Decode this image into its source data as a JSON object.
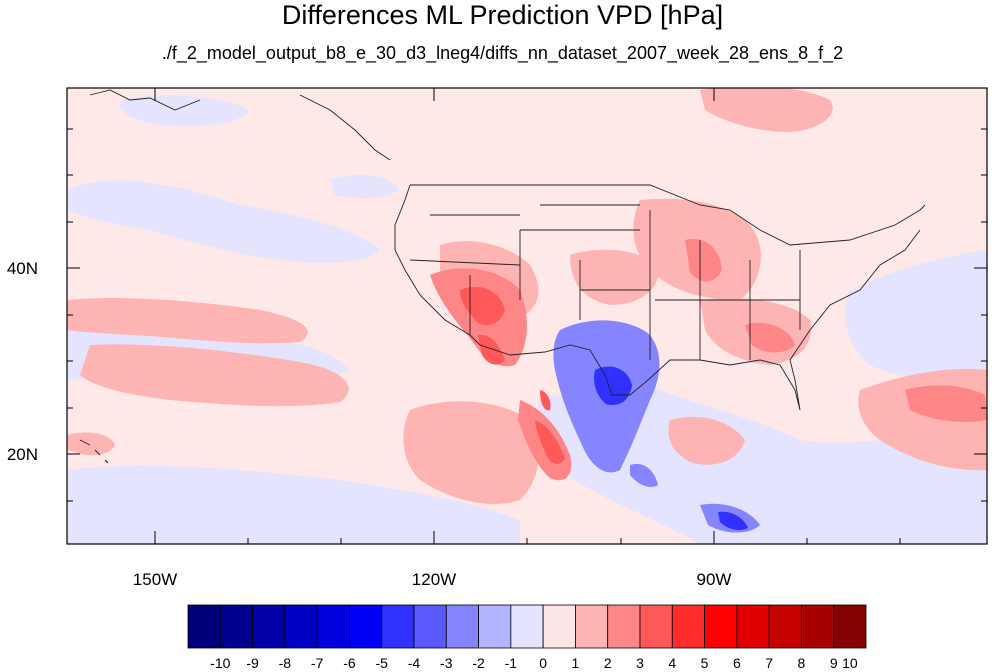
{
  "title": "Differences ML Prediction VPD [hPa]",
  "subtitle": "./f_2_model_output_b8_e_30_d3_lneg4/diffs_nn_dataset_2007_week_28_ens_8_f_2",
  "axes": {
    "lon_labels": [
      "150W",
      "120W",
      "90W"
    ],
    "lat_labels": [
      "40N",
      "20N"
    ]
  },
  "colorbar": {
    "labels": [
      "-10",
      "-9",
      "-8",
      "-7",
      "-6",
      "-5",
      "-4",
      "-3",
      "-2",
      "-1",
      "0",
      "1",
      "2",
      "3",
      "4",
      "5",
      "6",
      "7",
      "8",
      "9",
      "10"
    ],
    "colors": [
      "#00007a",
      "#00008f",
      "#0000a8",
      "#0000c4",
      "#0000dd",
      "#0000f5",
      "#3030ff",
      "#5a5aff",
      "#8585ff",
      "#b3b3ff",
      "#e4e4ff",
      "#ffe6e6",
      "#ffb4b4",
      "#ff8686",
      "#ff5858",
      "#ff2c2c",
      "#ff0000",
      "#e00000",
      "#c40000",
      "#a80000",
      "#850000"
    ]
  },
  "colors": {
    "background_field": "#ffe8e8",
    "weak_negative": "#e4e4ff",
    "weak_positive": "#ffb4b4",
    "moderate_positive": "#ff8686",
    "strong_positive": "#ff5858",
    "moderate_negative": "#8585ff",
    "strong_negative": "#3030ff"
  }
}
